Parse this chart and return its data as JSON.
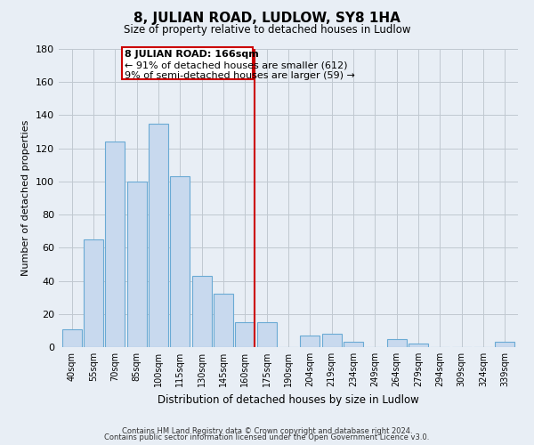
{
  "title": "8, JULIAN ROAD, LUDLOW, SY8 1HA",
  "subtitle": "Size of property relative to detached houses in Ludlow",
  "xlabel": "Distribution of detached houses by size in Ludlow",
  "ylabel": "Number of detached properties",
  "bar_color": "#c8d9ee",
  "bar_edge_color": "#6aaad4",
  "categories": [
    "40sqm",
    "55sqm",
    "70sqm",
    "85sqm",
    "100sqm",
    "115sqm",
    "130sqm",
    "145sqm",
    "160sqm",
    "175sqm",
    "190sqm",
    "204sqm",
    "219sqm",
    "234sqm",
    "249sqm",
    "264sqm",
    "279sqm",
    "294sqm",
    "309sqm",
    "324sqm",
    "339sqm"
  ],
  "values": [
    11,
    65,
    124,
    100,
    135,
    103,
    43,
    32,
    15,
    15,
    0,
    7,
    8,
    3,
    0,
    5,
    2,
    0,
    0,
    0,
    3
  ],
  "ylim": [
    0,
    180
  ],
  "yticks": [
    0,
    20,
    40,
    60,
    80,
    100,
    120,
    140,
    160,
    180
  ],
  "vline_x_idx": 8,
  "vline_color": "#cc0000",
  "annotation_title": "8 JULIAN ROAD: 166sqm",
  "annotation_line1": "← 91% of detached houses are smaller (612)",
  "annotation_line2": "9% of semi-detached houses are larger (59) →",
  "annotation_box_color": "#ffffff",
  "annotation_box_edge": "#cc0000",
  "footer1": "Contains HM Land Registry data © Crown copyright and database right 2024.",
  "footer2": "Contains public sector information licensed under the Open Government Licence v3.0.",
  "background_color": "#e8eef5"
}
